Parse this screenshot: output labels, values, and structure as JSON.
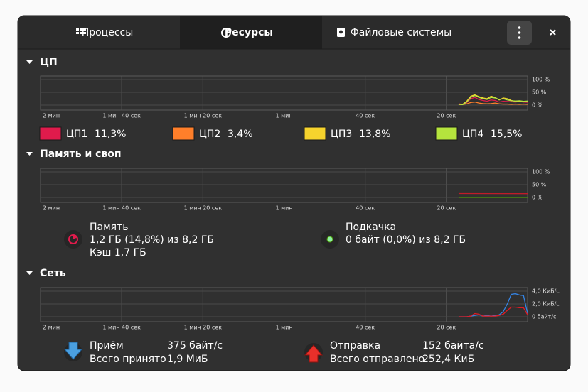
{
  "tabs": [
    "Процессы",
    "Ресурсы",
    "Файловые системы"
  ],
  "active_tab": 1,
  "sections": [
    {
      "title": "ЦП",
      "graph": {
        "xlim": [
          120,
          0
        ],
        "xticks": [
          {
            "value": 120,
            "label": "2 мин"
          },
          {
            "value": 100,
            "label": "1 мин 40 сек"
          },
          {
            "value": 80,
            "label": "1 мин 20 сек"
          },
          {
            "value": 60,
            "label": "1 мин"
          },
          {
            "value": 40,
            "label": "40 сек"
          },
          {
            "value": 20,
            "label": "20 сек"
          }
        ],
        "ylim": [
          0,
          100
        ],
        "yticks": [
          {
            "value": 100,
            "label": "100 %"
          },
          {
            "value": 50,
            "label": "50 %"
          },
          {
            "value": 0,
            "label": "0 %"
          }
        ],
        "series": [
          {
            "name": "ЦП1",
            "color": "#e01b4c",
            "x": [
              17,
              16,
              15,
              14,
              13,
              12,
              11,
              10,
              9,
              8,
              7,
              6,
              5,
              4,
              3,
              2,
              1,
              0
            ],
            "values": [
              5,
              3,
              10,
              25,
              30,
              22,
              18,
              15,
              20,
              18,
              12,
              15,
              14,
              13,
              12,
              14,
              12,
              11
            ]
          },
          {
            "name": "ЦП2",
            "color": "#ff7f2a",
            "x": [
              17,
              16,
              15,
              14,
              13,
              12,
              11,
              10,
              9,
              8,
              7,
              6,
              5,
              4,
              3,
              2,
              1,
              0
            ],
            "values": [
              2,
              2,
              5,
              10,
              12,
              8,
              6,
              5,
              6,
              8,
              5,
              4,
              4,
              3,
              4,
              3,
              4,
              3
            ]
          },
          {
            "name": "ЦП3",
            "color": "#f6d32d",
            "x": [
              17,
              16,
              15,
              14,
              13,
              12,
              11,
              10,
              9,
              8,
              7,
              6,
              5,
              4,
              3,
              2,
              1,
              0
            ],
            "values": [
              4,
              3,
              15,
              35,
              40,
              33,
              28,
              25,
              35,
              30,
              20,
              28,
              25,
              18,
              15,
              16,
              14,
              14
            ]
          },
          {
            "name": "ЦП4",
            "color": "#b5e43d",
            "x": [
              17,
              16,
              15,
              14,
              13,
              12,
              11,
              10,
              9,
              8,
              7,
              6,
              5,
              4,
              3,
              2,
              1,
              0
            ],
            "values": [
              3,
              2,
              12,
              30,
              38,
              30,
              25,
              22,
              30,
              28,
              22,
              25,
              20,
              17,
              16,
              17,
              15,
              16
            ]
          }
        ]
      },
      "legend_values": [
        "11,3%",
        "3,4%",
        "13,8%",
        "15,5%"
      ]
    },
    {
      "title": "Память и своп",
      "graph": {
        "xlim": [
          120,
          0
        ],
        "xticks": [
          {
            "value": 120,
            "label": "2 мин"
          },
          {
            "value": 100,
            "label": "1 мин 40 сек"
          },
          {
            "value": 80,
            "label": "1 мин 20 сек"
          },
          {
            "value": 60,
            "label": "1 мин"
          },
          {
            "value": 40,
            "label": "40 сек"
          },
          {
            "value": 20,
            "label": "20 сек"
          }
        ],
        "ylim": [
          0,
          100
        ],
        "yticks": [
          {
            "value": 100,
            "label": "100 %"
          },
          {
            "value": 50,
            "label": "50 %"
          },
          {
            "value": 0,
            "label": "0 %"
          }
        ],
        "series": [
          {
            "color": "#c01c28",
            "x": [
              17,
              8,
              0
            ],
            "values": [
              15.2,
              15.0,
              14.8
            ]
          },
          {
            "color": "#4e9a06",
            "x": [
              17,
              8,
              0
            ],
            "values": [
              0,
              0,
              0
            ]
          }
        ]
      },
      "items": [
        {
          "title": "Память",
          "lines": [
            "1,2 ГБ (14,8%) из 8,2 ГБ",
            "Кэш 1,7 ГБ"
          ]
        },
        {
          "title": "Подкачка",
          "lines": [
            "0 байт (0,0%) из 8,2 ГБ"
          ]
        }
      ]
    },
    {
      "title": "Сеть",
      "graph": {
        "xlim": [
          120,
          0
        ],
        "xticks": [
          {
            "value": 120,
            "label": "2 мин"
          },
          {
            "value": 100,
            "label": "1 мин 40 сек"
          },
          {
            "value": 80,
            "label": "1 мин 20 сек"
          },
          {
            "value": 60,
            "label": "1 мин"
          },
          {
            "value": 40,
            "label": "40 сек"
          },
          {
            "value": 20,
            "label": "20 сек"
          }
        ],
        "ylim": [
          0,
          4
        ],
        "yticks": [
          {
            "value": 4,
            "label": "4,0 КиБ/с"
          },
          {
            "value": 2,
            "label": "2,0 КиБ/с"
          },
          {
            "value": 0,
            "label": "0 байт/с"
          }
        ],
        "series": [
          {
            "color": "#3584e4",
            "x": [
              17,
              16,
              15,
              14,
              13,
              12,
              11,
              10,
              9,
              8,
              7,
              6,
              5,
              4,
              3,
              2,
              1,
              0
            ],
            "values": [
              0,
              0,
              0,
              0.1,
              0.2,
              0.3,
              0.1,
              0.2,
              0.1,
              0.2,
              0.3,
              0.8,
              2.0,
              3.5,
              3.6,
              3.4,
              3.3,
              0.5
            ]
          },
          {
            "color": "#e01b24",
            "x": [
              17,
              16,
              15,
              14,
              13,
              12,
              11,
              10,
              9,
              8,
              7,
              6,
              5,
              4,
              3,
              2,
              1,
              0
            ],
            "values": [
              0,
              0,
              0,
              0.1,
              0.5,
              0.4,
              0.1,
              0.1,
              0.1,
              0.1,
              0.2,
              0.4,
              1.0,
              1.5,
              1.5,
              1.4,
              1.4,
              0.3
            ]
          }
        ]
      },
      "items": [
        {
          "rows": [
            [
              "Приём",
              "375 байт/с"
            ],
            [
              "Всего принято",
              "1,9 МиБ"
            ]
          ]
        },
        {
          "rows": [
            [
              "Отправка",
              "152 байта/с"
            ],
            [
              "Всего отправлено",
              "252,4 КиБ"
            ]
          ]
        }
      ]
    }
  ]
}
